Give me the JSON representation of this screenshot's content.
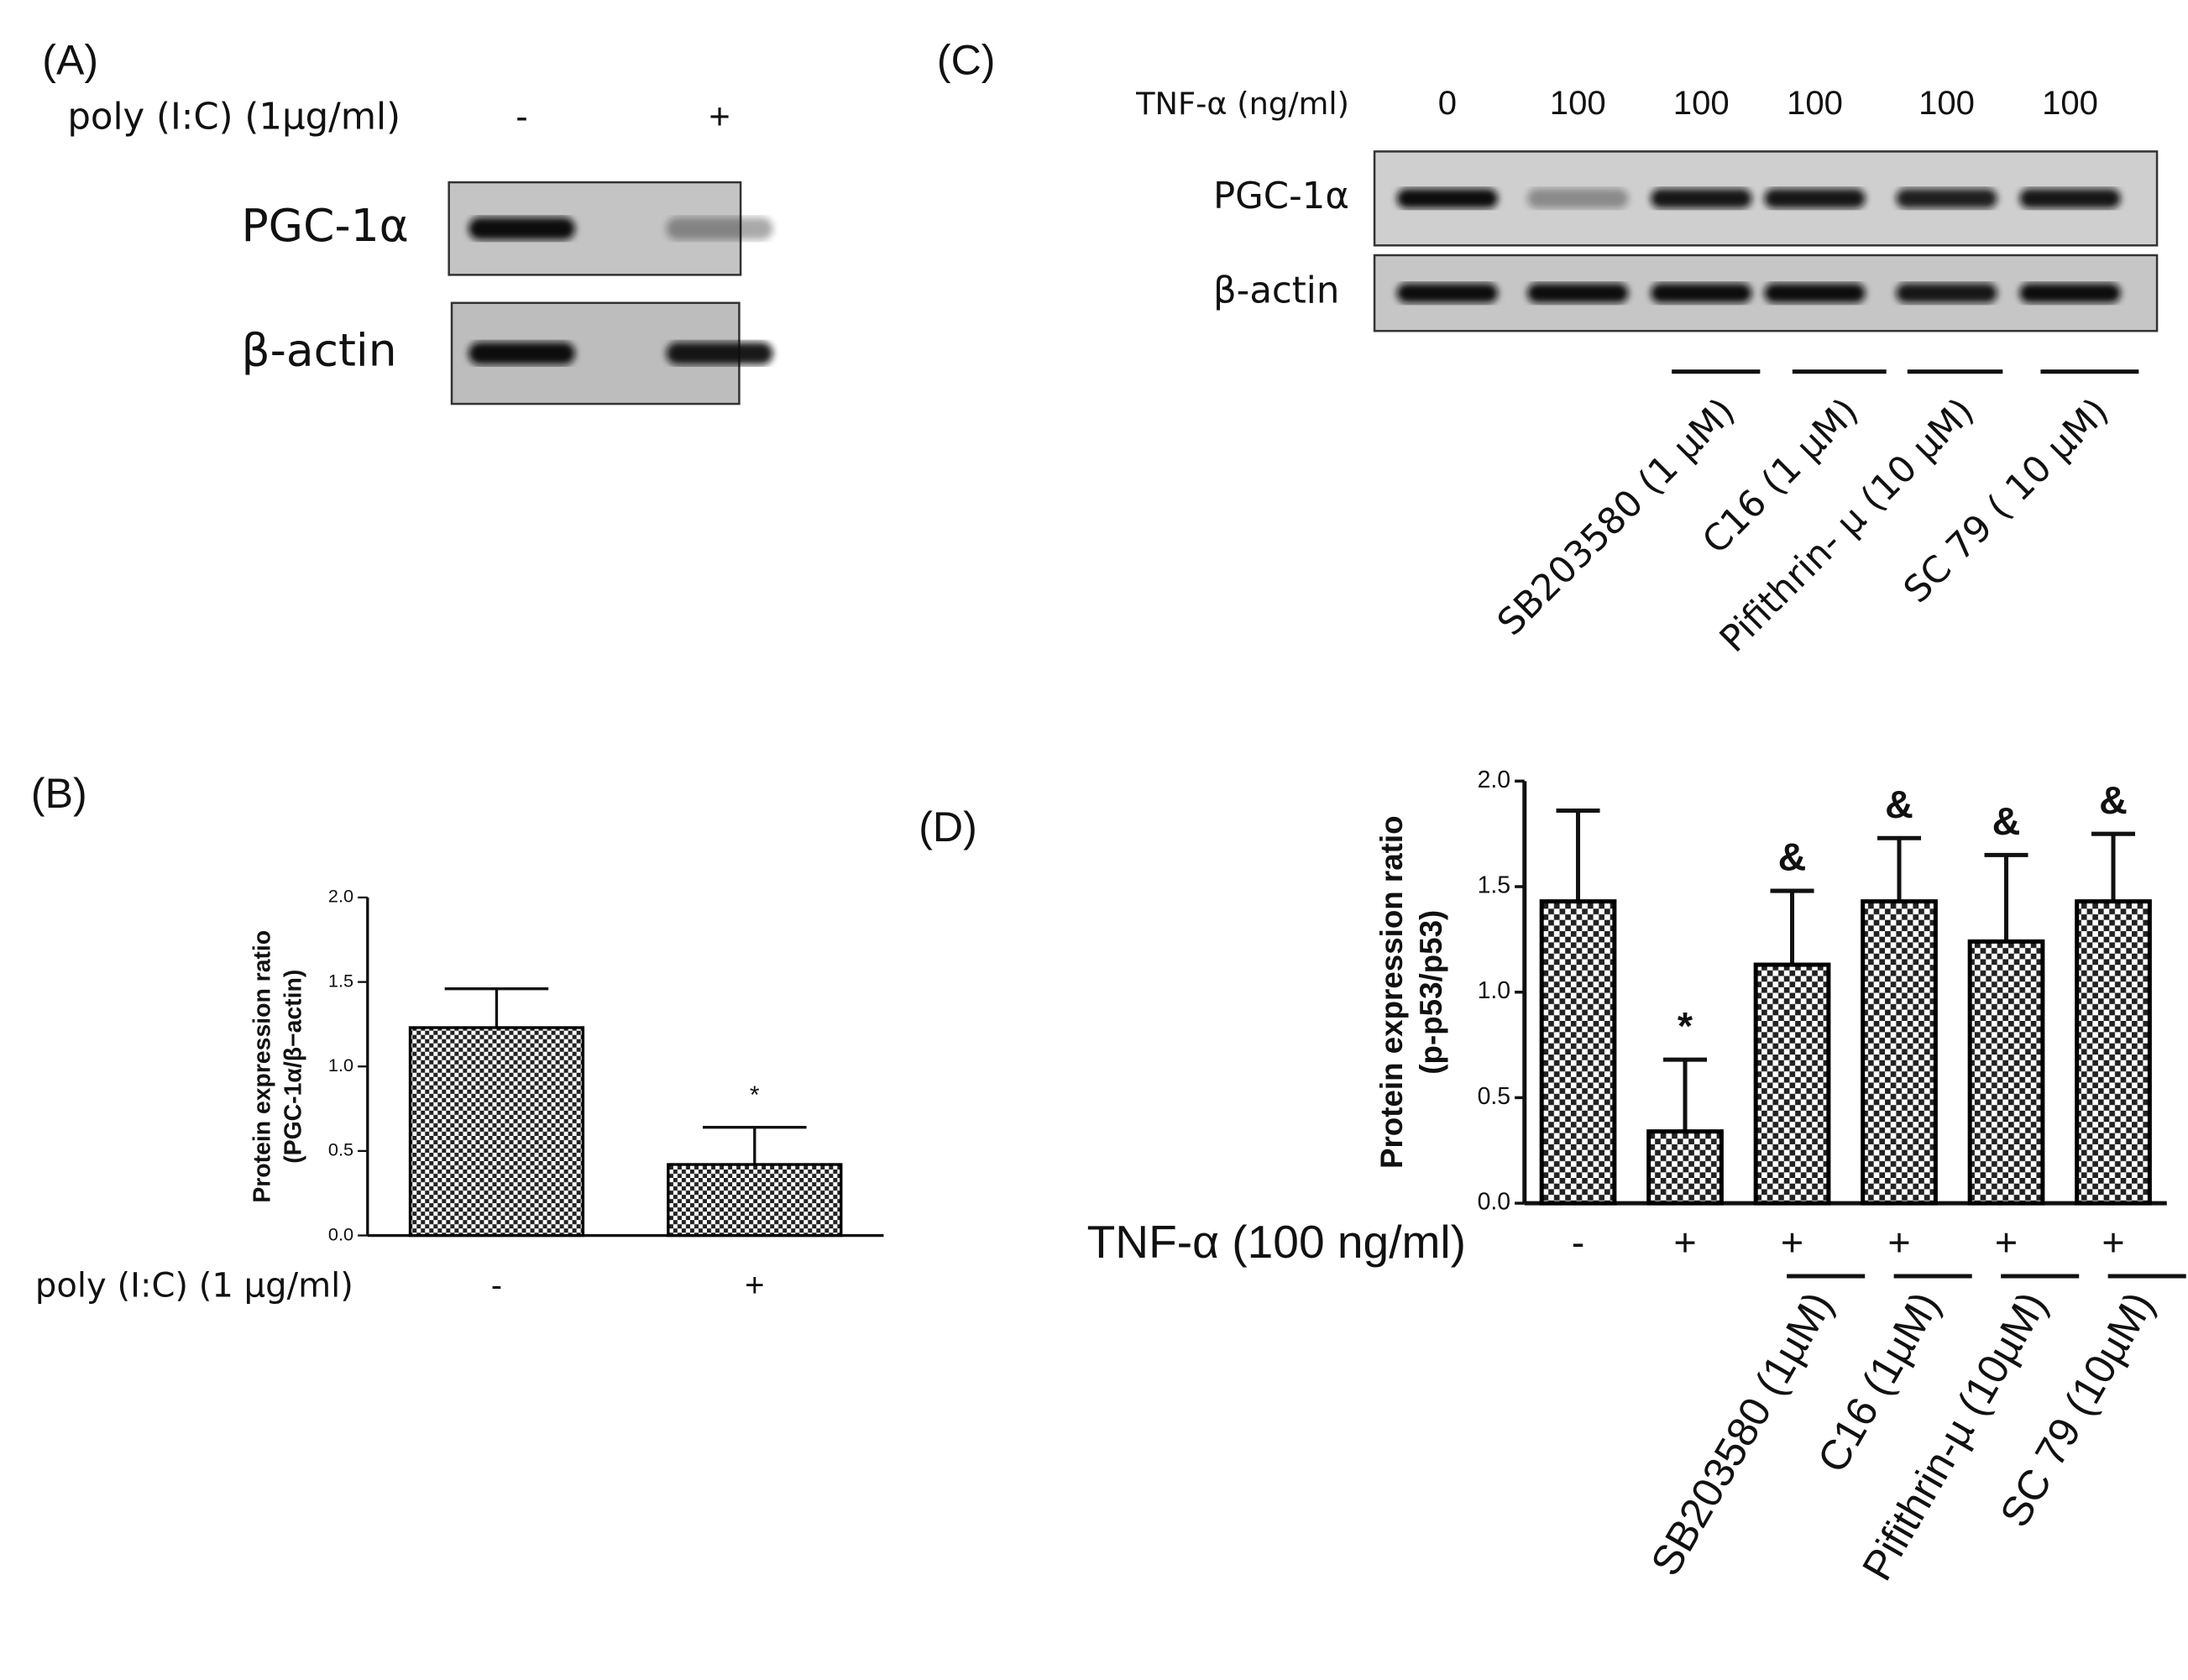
{
  "panel_labels": [
    "(A)",
    "(B)",
    "(C)",
    "(D)"
  ],
  "blot_a": {
    "treatment_label": "poly (I:C) (1µg/ml)",
    "lanes": [
      "-",
      "+"
    ],
    "proteins": [
      "PGC-1α",
      "β-actin"
    ]
  },
  "blot_c": {
    "treatment_label": "TNF-α (ng/ml)",
    "lanes": [
      "0",
      "100",
      "100",
      "100",
      "100",
      "100"
    ],
    "proteins": [
      "PGC-1α",
      "β-actin"
    ],
    "inhibitors": [
      "SB203580 (1 µM)",
      "C16 (1 µM)",
      "Pifithrin- µ (10 µM)",
      "SC 79 ( 10 µM)"
    ]
  },
  "chart_data": [
    {
      "type": "bar",
      "ylabel": [
        "Protein expression ratio",
        "(PGC-1α/β−actin)"
      ],
      "xlabel": "poly (I:C) (1 µg/ml)",
      "categories": [
        "-",
        "+"
      ],
      "values": [
        1.23,
        0.42
      ],
      "errors": [
        0.23,
        0.22
      ],
      "annotations": [
        null,
        "*"
      ],
      "color": "#000000",
      "ylim": [
        0,
        2
      ],
      "yticks": [
        {
          "value": 0,
          "label": "0.0"
        },
        {
          "value": 0.5,
          "label": "0.5"
        },
        {
          "value": 1,
          "label": "1.0"
        },
        {
          "value": 1.5,
          "label": "1.5"
        },
        {
          "value": 2,
          "label": "2.0"
        }
      ]
    },
    {
      "type": "bar",
      "ylabel": [
        "Protein expression ratio",
        "(p-p53/p53)"
      ],
      "xlabel": "TNF-α (100 ng/ml)",
      "categories": [
        "-",
        "+",
        "+",
        "+",
        "+",
        "+"
      ],
      "values": [
        1.43,
        0.34,
        1.13,
        1.43,
        1.24,
        1.43
      ],
      "errors": [
        0.43,
        0.34,
        0.35,
        0.3,
        0.41,
        0.32
      ],
      "annotations": [
        null,
        "*",
        "&",
        "&",
        "&",
        "&"
      ],
      "inhibitors": [
        "SB203580 (1µM)",
        "C16 (1µM)",
        "Pifithrin-µ (10µM)",
        "SC 79 (10µM)"
      ],
      "color": "#000000",
      "ylim": [
        0,
        2
      ],
      "yticks": [
        {
          "value": 0,
          "label": "0.0"
        },
        {
          "value": 0.5,
          "label": "0.5"
        },
        {
          "value": 1,
          "label": "1.0"
        },
        {
          "value": 1.5,
          "label": "1.5"
        },
        {
          "value": 2,
          "label": "2.0"
        }
      ]
    }
  ]
}
